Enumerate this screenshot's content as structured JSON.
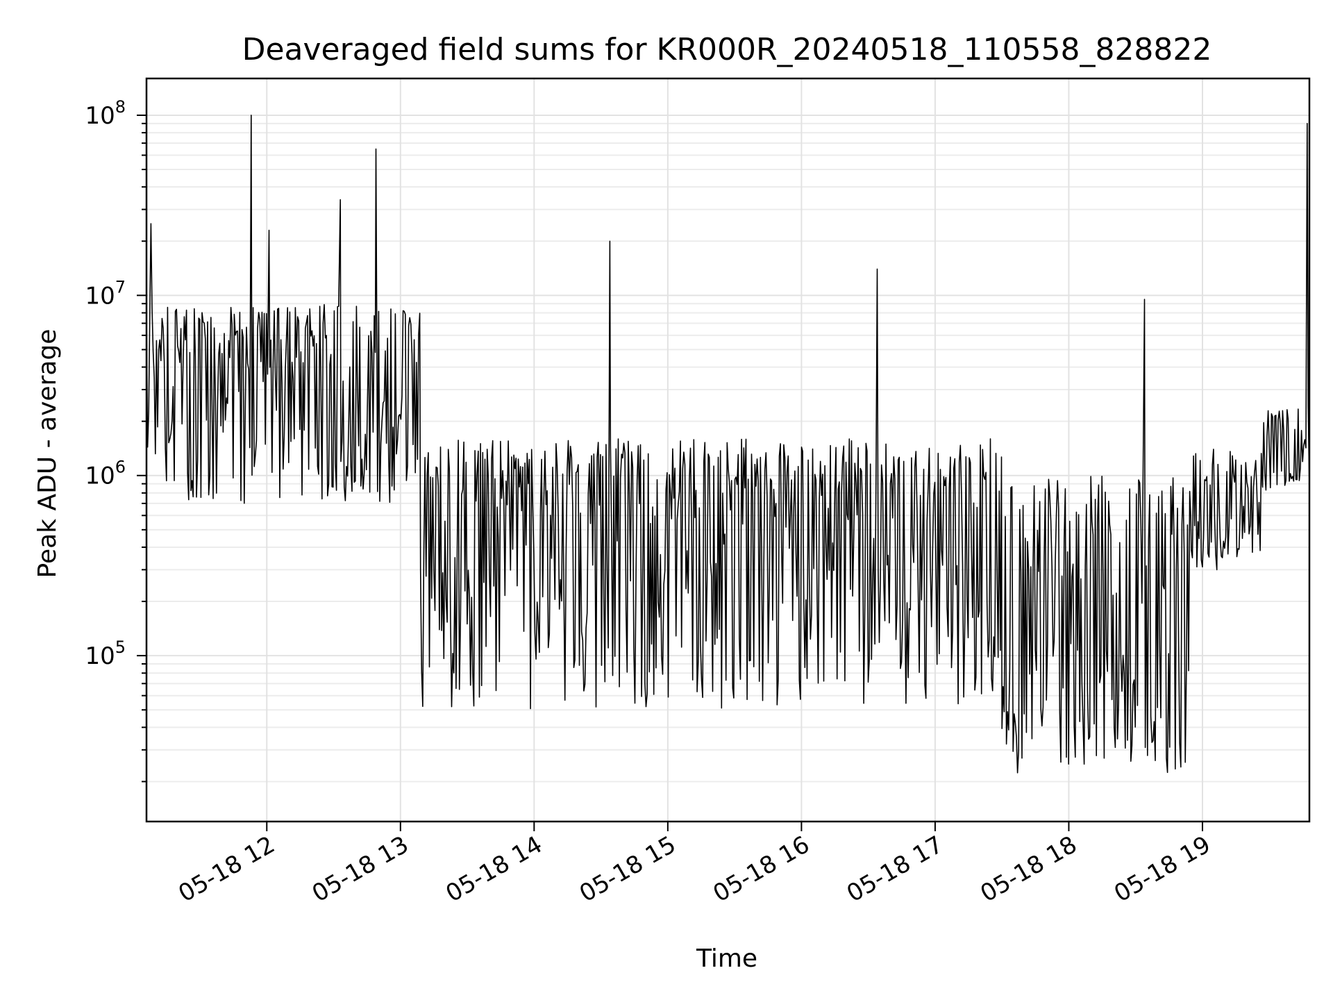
{
  "chart_data": {
    "type": "line",
    "title": "Deaveraged field sums for KR000R_20240518_110558_828822",
    "xlabel": "Time",
    "ylabel": "Peak ADU - average",
    "yscale": "log",
    "ylim": [
      12000,
      160000000
    ],
    "xlim": [
      "2024-05-18 11:06",
      "2024-05-18 19:48"
    ],
    "grid": "both major and minor",
    "x_ticks": [
      "05-18 12",
      "05-18 13",
      "05-18 14",
      "05-18 15",
      "05-18 16",
      "05-18 17",
      "05-18 18",
      "05-18 19"
    ],
    "x_tick_times": [
      "2024-05-18 12:00",
      "2024-05-18 13:00",
      "2024-05-18 14:00",
      "2024-05-18 15:00",
      "2024-05-18 16:00",
      "2024-05-18 17:00",
      "2024-05-18 18:00",
      "2024-05-18 19:00"
    ],
    "y_ticks": [
      {
        "value": 100000,
        "base": "10",
        "exp": "5"
      },
      {
        "value": 1000000,
        "base": "10",
        "exp": "6"
      },
      {
        "value": 10000000,
        "base": "10",
        "exp": "7"
      },
      {
        "value": 100000000,
        "base": "10",
        "exp": "8"
      }
    ],
    "segments": [
      {
        "start": "2024-05-18 11:06",
        "end": "2024-05-18 13:09",
        "median": 3000000,
        "high": 9000000,
        "low": 700000
      },
      {
        "start": "2024-05-18 13:09",
        "end": "2024-05-18 17:30",
        "median": 500000,
        "high": 1600000,
        "low": 50000
      },
      {
        "start": "2024-05-18 17:30",
        "end": "2024-05-18 18:55",
        "median": 150000,
        "high": 1000000,
        "low": 22000
      },
      {
        "start": "2024-05-18 18:55",
        "end": "2024-05-18 19:27",
        "median": 600000,
        "high": 1400000,
        "low": 300000
      },
      {
        "start": "2024-05-18 19:27",
        "end": "2024-05-18 19:48",
        "median": 1300000,
        "high": 2500000,
        "low": 800000
      }
    ],
    "spikes": [
      {
        "t": "2024-05-18 11:08",
        "y": 25000000
      },
      {
        "t": "2024-05-18 11:53",
        "y": 100000000
      },
      {
        "t": "2024-05-18 12:01",
        "y": 23000000
      },
      {
        "t": "2024-05-18 12:33",
        "y": 34000000
      },
      {
        "t": "2024-05-18 12:49",
        "y": 65000000
      },
      {
        "t": "2024-05-18 14:34",
        "y": 20000000
      },
      {
        "t": "2024-05-18 16:34",
        "y": 14000000
      },
      {
        "t": "2024-05-18 18:34",
        "y": 9500000
      },
      {
        "t": "2024-05-18 19:47",
        "y": 90000000
      }
    ]
  }
}
